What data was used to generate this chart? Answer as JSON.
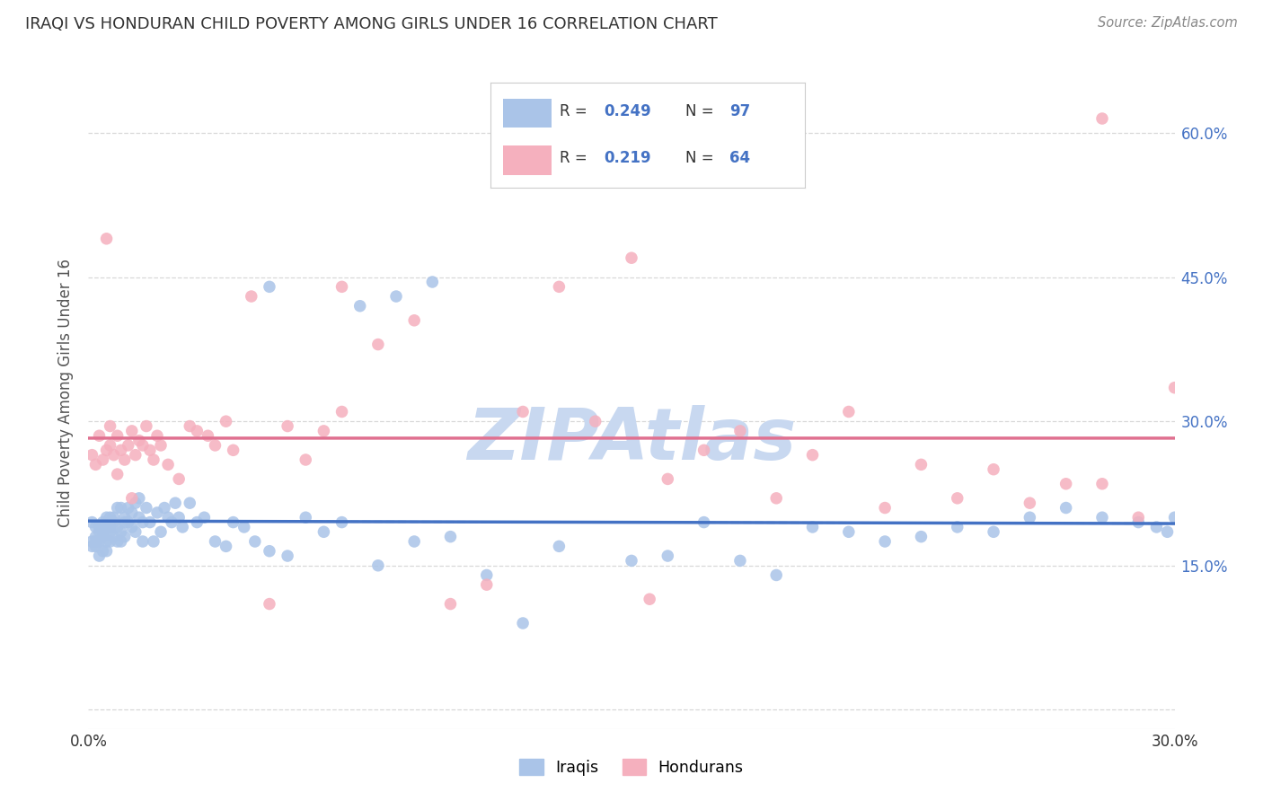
{
  "title": "IRAQI VS HONDURAN CHILD POVERTY AMONG GIRLS UNDER 16 CORRELATION CHART",
  "source": "Source: ZipAtlas.com",
  "ylabel": "Child Poverty Among Girls Under 16",
  "xlim": [
    0.0,
    0.3
  ],
  "ylim": [
    -0.02,
    0.68
  ],
  "xtick_positions": [
    0.0,
    0.05,
    0.1,
    0.15,
    0.2,
    0.25,
    0.3
  ],
  "xtick_labels": [
    "0.0%",
    "",
    "",
    "",
    "",
    "",
    "30.0%"
  ],
  "ytick_positions": [
    0.0,
    0.15,
    0.3,
    0.45,
    0.6
  ],
  "ytick_labels_right": [
    "",
    "15.0%",
    "30.0%",
    "45.0%",
    "60.0%"
  ],
  "iraqis_color": "#aac4e8",
  "hondurans_color": "#f5b0be",
  "trendline_blue_color": "#4472c4",
  "trendline_pink_color": "#e07090",
  "trendline_dash_color": "#9ab8d8",
  "watermark": "ZIPAtlas",
  "watermark_color": "#c8d8f0",
  "background_color": "#ffffff",
  "grid_color": "#d8d8d8",
  "title_color": "#333333",
  "source_color": "#888888",
  "tick_color": "#4472c4",
  "ylabel_color": "#555555",
  "legend_edge_color": "#cccccc",
  "iraqis_R": "0.249",
  "iraqis_N": "97",
  "hondurans_R": "0.219",
  "hondurans_N": "64",
  "iraqis_x": [
    0.001,
    0.001,
    0.001,
    0.002,
    0.002,
    0.002,
    0.002,
    0.003,
    0.003,
    0.003,
    0.003,
    0.004,
    0.004,
    0.004,
    0.004,
    0.005,
    0.005,
    0.005,
    0.005,
    0.006,
    0.006,
    0.006,
    0.006,
    0.007,
    0.007,
    0.007,
    0.008,
    0.008,
    0.008,
    0.009,
    0.009,
    0.009,
    0.01,
    0.01,
    0.01,
    0.011,
    0.011,
    0.012,
    0.012,
    0.013,
    0.013,
    0.014,
    0.014,
    0.015,
    0.015,
    0.016,
    0.017,
    0.018,
    0.019,
    0.02,
    0.021,
    0.022,
    0.023,
    0.024,
    0.025,
    0.026,
    0.028,
    0.03,
    0.032,
    0.035,
    0.038,
    0.04,
    0.043,
    0.046,
    0.05,
    0.055,
    0.06,
    0.065,
    0.07,
    0.08,
    0.09,
    0.1,
    0.11,
    0.12,
    0.13,
    0.15,
    0.16,
    0.17,
    0.18,
    0.19,
    0.2,
    0.21,
    0.22,
    0.23,
    0.24,
    0.25,
    0.26,
    0.27,
    0.28,
    0.29,
    0.295,
    0.298,
    0.3,
    0.05,
    0.075,
    0.085,
    0.095
  ],
  "iraqis_y": [
    0.195,
    0.17,
    0.175,
    0.18,
    0.19,
    0.17,
    0.175,
    0.185,
    0.16,
    0.175,
    0.19,
    0.185,
    0.165,
    0.18,
    0.195,
    0.175,
    0.19,
    0.2,
    0.165,
    0.2,
    0.185,
    0.175,
    0.19,
    0.2,
    0.18,
    0.195,
    0.19,
    0.175,
    0.21,
    0.185,
    0.175,
    0.21,
    0.2,
    0.18,
    0.195,
    0.21,
    0.195,
    0.205,
    0.19,
    0.215,
    0.185,
    0.22,
    0.2,
    0.195,
    0.175,
    0.21,
    0.195,
    0.175,
    0.205,
    0.185,
    0.21,
    0.2,
    0.195,
    0.215,
    0.2,
    0.19,
    0.215,
    0.195,
    0.2,
    0.175,
    0.17,
    0.195,
    0.19,
    0.175,
    0.165,
    0.16,
    0.2,
    0.185,
    0.195,
    0.15,
    0.175,
    0.18,
    0.14,
    0.09,
    0.17,
    0.155,
    0.16,
    0.195,
    0.155,
    0.14,
    0.19,
    0.185,
    0.175,
    0.18,
    0.19,
    0.185,
    0.2,
    0.21,
    0.2,
    0.195,
    0.19,
    0.185,
    0.2,
    0.44,
    0.42,
    0.43,
    0.445
  ],
  "hondurans_x": [
    0.001,
    0.002,
    0.003,
    0.004,
    0.005,
    0.006,
    0.006,
    0.007,
    0.008,
    0.009,
    0.01,
    0.011,
    0.012,
    0.013,
    0.014,
    0.015,
    0.016,
    0.017,
    0.018,
    0.019,
    0.02,
    0.022,
    0.025,
    0.028,
    0.03,
    0.033,
    0.035,
    0.038,
    0.04,
    0.045,
    0.05,
    0.055,
    0.06,
    0.065,
    0.07,
    0.08,
    0.09,
    0.1,
    0.11,
    0.12,
    0.13,
    0.14,
    0.15,
    0.16,
    0.17,
    0.18,
    0.19,
    0.2,
    0.21,
    0.22,
    0.23,
    0.24,
    0.25,
    0.26,
    0.27,
    0.28,
    0.29,
    0.3,
    0.005,
    0.008,
    0.012,
    0.07,
    0.155,
    0.28
  ],
  "hondurans_y": [
    0.265,
    0.255,
    0.285,
    0.26,
    0.27,
    0.275,
    0.295,
    0.265,
    0.285,
    0.27,
    0.26,
    0.275,
    0.29,
    0.265,
    0.28,
    0.275,
    0.295,
    0.27,
    0.26,
    0.285,
    0.275,
    0.255,
    0.24,
    0.295,
    0.29,
    0.285,
    0.275,
    0.3,
    0.27,
    0.43,
    0.11,
    0.295,
    0.26,
    0.29,
    0.31,
    0.38,
    0.405,
    0.11,
    0.13,
    0.31,
    0.44,
    0.3,
    0.47,
    0.24,
    0.27,
    0.29,
    0.22,
    0.265,
    0.31,
    0.21,
    0.255,
    0.22,
    0.25,
    0.215,
    0.235,
    0.235,
    0.2,
    0.335,
    0.49,
    0.245,
    0.22,
    0.44,
    0.115,
    0.615
  ]
}
